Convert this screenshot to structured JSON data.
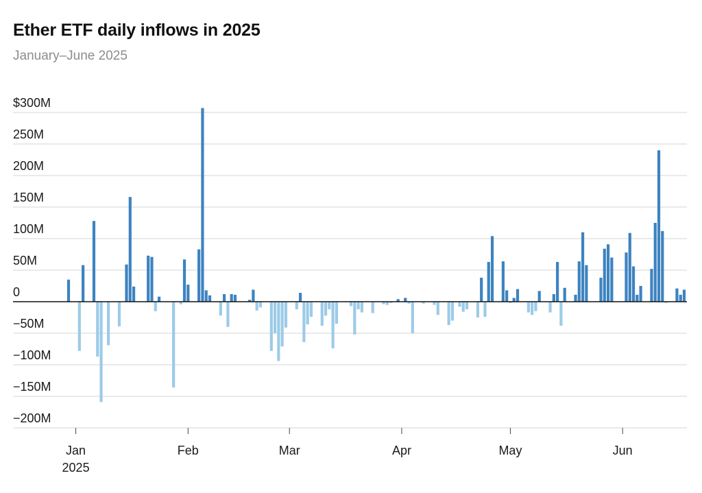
{
  "title": "Ether ETF daily inflows in 2025",
  "subtitle": "January–June 2025",
  "colors": {
    "positive": "#3d83c0",
    "negative": "#9ccbe8",
    "grid": "#d6d6d6",
    "axis": "#111111"
  },
  "chart_data": {
    "type": "bar",
    "title": "Ether ETF daily inflows in 2025",
    "subtitle": "January–June 2025",
    "xlabel": "",
    "ylabel": "",
    "ylim": [
      -200,
      300
    ],
    "yticks": [
      {
        "value": 300,
        "label": "$300M"
      },
      {
        "value": 250,
        "label": "250M"
      },
      {
        "value": 200,
        "label": "200M"
      },
      {
        "value": 150,
        "label": "150M"
      },
      {
        "value": 100,
        "label": "100M"
      },
      {
        "value": 50,
        "label": "50M"
      },
      {
        "value": 0,
        "label": "0"
      },
      {
        "value": -50,
        "label": "−50M"
      },
      {
        "value": -100,
        "label": "−100M"
      },
      {
        "value": -150,
        "label": "−150M"
      },
      {
        "value": -200,
        "label": "−200M"
      }
    ],
    "xticks": [
      {
        "date": "2025-01-01",
        "label": "Jan",
        "sublabel": "2025"
      },
      {
        "date": "2025-02-01",
        "label": "Feb"
      },
      {
        "date": "2025-03-01",
        "label": "Mar"
      },
      {
        "date": "2025-04-01",
        "label": "Apr"
      },
      {
        "date": "2025-05-01",
        "label": "May"
      },
      {
        "date": "2025-06-01",
        "label": "Jun"
      }
    ],
    "xlim": [
      "2024-12-30",
      "2025-06-18"
    ],
    "grid": true,
    "legend": "none",
    "series": [
      {
        "points": [
          {
            "date": "2024-12-30",
            "value": 35
          },
          {
            "date": "2025-01-02",
            "value": -78
          },
          {
            "date": "2025-01-03",
            "value": 58
          },
          {
            "date": "2025-01-06",
            "value": 128
          },
          {
            "date": "2025-01-07",
            "value": -87
          },
          {
            "date": "2025-01-08",
            "value": -159
          },
          {
            "date": "2025-01-10",
            "value": -69
          },
          {
            "date": "2025-01-13",
            "value": -39
          },
          {
            "date": "2025-01-15",
            "value": 59
          },
          {
            "date": "2025-01-16",
            "value": 166
          },
          {
            "date": "2025-01-17",
            "value": 24
          },
          {
            "date": "2025-01-21",
            "value": 73
          },
          {
            "date": "2025-01-22",
            "value": 71
          },
          {
            "date": "2025-01-23",
            "value": -15
          },
          {
            "date": "2025-01-24",
            "value": 8
          },
          {
            "date": "2025-01-28",
            "value": -136
          },
          {
            "date": "2025-01-30",
            "value": -4
          },
          {
            "date": "2025-01-31",
            "value": 67
          },
          {
            "date": "2025-02-01",
            "value": 27
          },
          {
            "date": "2025-02-04",
            "value": 83
          },
          {
            "date": "2025-02-05",
            "value": 307
          },
          {
            "date": "2025-02-06",
            "value": 18
          },
          {
            "date": "2025-02-07",
            "value": 10
          },
          {
            "date": "2025-02-10",
            "value": -22
          },
          {
            "date": "2025-02-11",
            "value": 12
          },
          {
            "date": "2025-02-12",
            "value": -40
          },
          {
            "date": "2025-02-13",
            "value": 12
          },
          {
            "date": "2025-02-14",
            "value": 11
          },
          {
            "date": "2025-02-18",
            "value": 3
          },
          {
            "date": "2025-02-19",
            "value": 19
          },
          {
            "date": "2025-02-20",
            "value": -14
          },
          {
            "date": "2025-02-21",
            "value": -9
          },
          {
            "date": "2025-02-24",
            "value": -78
          },
          {
            "date": "2025-02-25",
            "value": -50
          },
          {
            "date": "2025-02-26",
            "value": -94
          },
          {
            "date": "2025-02-27",
            "value": -71
          },
          {
            "date": "2025-02-28",
            "value": -41
          },
          {
            "date": "2025-03-03",
            "value": -12
          },
          {
            "date": "2025-03-04",
            "value": 14
          },
          {
            "date": "2025-03-05",
            "value": -64
          },
          {
            "date": "2025-03-06",
            "value": -36
          },
          {
            "date": "2025-03-07",
            "value": -24
          },
          {
            "date": "2025-03-10",
            "value": -38
          },
          {
            "date": "2025-03-11",
            "value": -22
          },
          {
            "date": "2025-03-12",
            "value": -12
          },
          {
            "date": "2025-03-13",
            "value": -74
          },
          {
            "date": "2025-03-14",
            "value": -35
          },
          {
            "date": "2025-03-18",
            "value": -7
          },
          {
            "date": "2025-03-19",
            "value": -52
          },
          {
            "date": "2025-03-20",
            "value": -12
          },
          {
            "date": "2025-03-21",
            "value": -17
          },
          {
            "date": "2025-03-24",
            "value": -18
          },
          {
            "date": "2025-03-27",
            "value": -4
          },
          {
            "date": "2025-03-28",
            "value": -5
          },
          {
            "date": "2025-03-29",
            "value": -2
          },
          {
            "date": "2025-03-31",
            "value": 4
          },
          {
            "date": "2025-04-02",
            "value": 6
          },
          {
            "date": "2025-04-03",
            "value": -3
          },
          {
            "date": "2025-04-04",
            "value": -50
          },
          {
            "date": "2025-04-07",
            "value": -3
          },
          {
            "date": "2025-04-10",
            "value": -5
          },
          {
            "date": "2025-04-11",
            "value": -21
          },
          {
            "date": "2025-04-14",
            "value": -37
          },
          {
            "date": "2025-04-15",
            "value": -30
          },
          {
            "date": "2025-04-17",
            "value": -8
          },
          {
            "date": "2025-04-18",
            "value": -16
          },
          {
            "date": "2025-04-19",
            "value": -12
          },
          {
            "date": "2025-04-22",
            "value": -25
          },
          {
            "date": "2025-04-23",
            "value": 38
          },
          {
            "date": "2025-04-24",
            "value": -24
          },
          {
            "date": "2025-04-25",
            "value": 63
          },
          {
            "date": "2025-04-26",
            "value": 104
          },
          {
            "date": "2025-04-29",
            "value": 64
          },
          {
            "date": "2025-04-30",
            "value": 18
          },
          {
            "date": "2025-05-01",
            "value": -2
          },
          {
            "date": "2025-05-02",
            "value": 6
          },
          {
            "date": "2025-05-03",
            "value": 20
          },
          {
            "date": "2025-05-06",
            "value": -17
          },
          {
            "date": "2025-05-07",
            "value": -21
          },
          {
            "date": "2025-05-08",
            "value": -15
          },
          {
            "date": "2025-05-09",
            "value": 17
          },
          {
            "date": "2025-05-12",
            "value": -17
          },
          {
            "date": "2025-05-13",
            "value": 12
          },
          {
            "date": "2025-05-14",
            "value": 63
          },
          {
            "date": "2025-05-15",
            "value": -38
          },
          {
            "date": "2025-05-16",
            "value": 22
          },
          {
            "date": "2025-05-19",
            "value": 11
          },
          {
            "date": "2025-05-20",
            "value": 64
          },
          {
            "date": "2025-05-21",
            "value": 110
          },
          {
            "date": "2025-05-22",
            "value": 58
          },
          {
            "date": "2025-05-26",
            "value": 38
          },
          {
            "date": "2025-05-27",
            "value": 84
          },
          {
            "date": "2025-05-28",
            "value": 91
          },
          {
            "date": "2025-05-29",
            "value": 70
          },
          {
            "date": "2025-06-02",
            "value": 78
          },
          {
            "date": "2025-06-03",
            "value": 109
          },
          {
            "date": "2025-06-04",
            "value": 56
          },
          {
            "date": "2025-06-05",
            "value": 11
          },
          {
            "date": "2025-06-06",
            "value": 25
          },
          {
            "date": "2025-06-09",
            "value": 52
          },
          {
            "date": "2025-06-10",
            "value": 125
          },
          {
            "date": "2025-06-11",
            "value": 240
          },
          {
            "date": "2025-06-12",
            "value": 112
          },
          {
            "date": "2025-06-13",
            "value": -2
          },
          {
            "date": "2025-06-16",
            "value": 21
          },
          {
            "date": "2025-06-17",
            "value": 11
          },
          {
            "date": "2025-06-18",
            "value": 19
          }
        ]
      }
    ]
  }
}
